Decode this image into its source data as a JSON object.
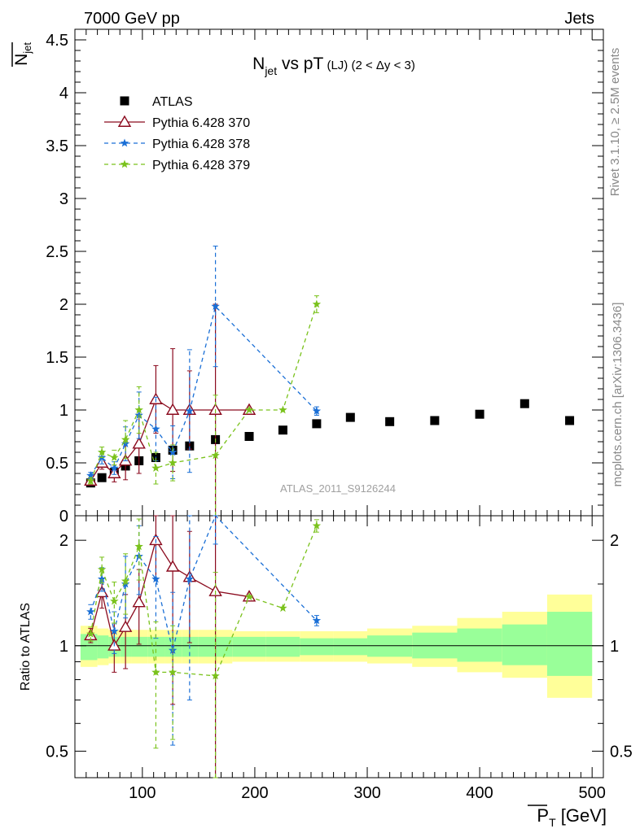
{
  "header": {
    "left": "7000 GeV pp",
    "right": "Jets"
  },
  "side_labels": {
    "rivet": "Rivet 3.1.10, ≥ 2.5M events",
    "mcplots": "mcplots.cern.ch [arXiv:1306.3436]"
  },
  "watermark": "ATLAS_2011_S9126244",
  "colors": {
    "atlas": "#000000",
    "p370": "#8b0a1e",
    "p378": "#1a6fd6",
    "p379": "#7ac21c",
    "band_inner": "#99ff99",
    "band_outer": "#ffff99"
  },
  "chart_data": [
    {
      "type": "scatter",
      "panel": "main",
      "title": {
        "main": "N",
        "main_sub": "jet",
        "rest": " vs pT",
        "small": " (LJ) (2 < Δy < 3)"
      },
      "ylabel": {
        "main": "N",
        "sub": "jet"
      },
      "xlim": [
        40,
        510
      ],
      "ylim": [
        0,
        4.6
      ],
      "xticks": [
        100,
        200,
        300,
        400,
        500
      ],
      "yticks": [
        "0",
        "0.5",
        "1",
        "1.5",
        "2",
        "2.5",
        "3",
        "3.5",
        "4",
        "4.5"
      ],
      "legend_position": "top-left",
      "series": [
        {
          "key": "atlas",
          "name": "ATLAS",
          "marker": "square",
          "x": [
            54,
            64,
            75,
            85,
            97,
            112,
            127,
            142,
            165,
            195,
            225,
            255,
            285,
            320,
            360,
            400,
            440,
            480
          ],
          "y": [
            0.31,
            0.36,
            0.41,
            0.47,
            0.52,
            0.55,
            0.62,
            0.66,
            0.72,
            0.75,
            0.81,
            0.87,
            0.93,
            0.89,
            0.9,
            0.96,
            1.06,
            0.9
          ]
        },
        {
          "key": "p370",
          "name": "Pythia 6.428 370",
          "marker": "triangle",
          "line": "solid",
          "x": [
            54,
            64,
            75,
            85,
            97,
            112,
            127,
            142,
            165,
            195
          ],
          "y": [
            0.33,
            0.5,
            0.4,
            0.52,
            0.68,
            1.1,
            1.0,
            1.0,
            1.0,
            1.0
          ],
          "err": [
            0.03,
            0.06,
            0.08,
            0.18,
            0.28,
            0.32,
            0.58,
            0.37,
            1.0,
            0.0
          ]
        },
        {
          "key": "p378",
          "name": "Pythia 6.428 378",
          "marker": "star",
          "line": "dashed",
          "x": [
            54,
            64,
            75,
            85,
            97,
            112,
            127,
            142,
            165,
            255
          ],
          "y": [
            0.38,
            0.55,
            0.45,
            0.68,
            0.95,
            0.82,
            0.6,
            0.99,
            1.98,
            0.99
          ],
          "err": [
            0.03,
            0.06,
            0.06,
            0.16,
            0.22,
            0.3,
            0.25,
            0.58,
            0.57,
            0.04
          ]
        },
        {
          "key": "p379",
          "name": "Pythia 6.428 379",
          "marker": "star",
          "line": "dashed",
          "x": [
            54,
            64,
            75,
            85,
            97,
            112,
            127,
            165,
            195,
            225,
            255
          ],
          "y": [
            0.33,
            0.6,
            0.55,
            0.72,
            1.0,
            0.45,
            0.5,
            0.57,
            1.0,
            1.0,
            2.0
          ],
          "err": [
            0.03,
            0.05,
            0.07,
            0.18,
            0.22,
            0.15,
            0.17,
            0.57,
            0.0,
            0.0,
            0.08
          ]
        }
      ]
    },
    {
      "type": "line",
      "panel": "ratio",
      "ylabel": "Ratio to ATLAS",
      "xlabel": {
        "main": "P",
        "sub": "T",
        "unit": " [GeV]"
      },
      "yscale": "log",
      "ylim": [
        0.42,
        2.35
      ],
      "yticks": [
        0.5,
        1,
        2
      ],
      "ytick_labels": [
        "0.5",
        "1",
        "2"
      ],
      "xticks": [
        100,
        200,
        300,
        400,
        500
      ],
      "xtick_labels": [
        "100",
        "200",
        "300",
        "400",
        "500"
      ],
      "band": {
        "edges": [
          45,
          60,
          70,
          80,
          90,
          105,
          120,
          135,
          150,
          180,
          210,
          240,
          270,
          300,
          340,
          380,
          420,
          460,
          500
        ],
        "inner": [
          [
            0.91,
            1.08
          ],
          [
            0.92,
            1.07
          ],
          [
            0.93,
            1.06
          ],
          [
            0.93,
            1.06
          ],
          [
            0.93,
            1.06
          ],
          [
            0.93,
            1.06
          ],
          [
            0.93,
            1.06
          ],
          [
            0.93,
            1.06
          ],
          [
            0.93,
            1.06
          ],
          [
            0.93,
            1.06
          ],
          [
            0.93,
            1.06
          ],
          [
            0.94,
            1.05
          ],
          [
            0.94,
            1.05
          ],
          [
            0.93,
            1.07
          ],
          [
            0.92,
            1.09
          ],
          [
            0.9,
            1.12
          ],
          [
            0.88,
            1.15
          ],
          [
            0.82,
            1.25
          ]
        ],
        "outer": [
          [
            0.87,
            1.14
          ],
          [
            0.88,
            1.12
          ],
          [
            0.89,
            1.11
          ],
          [
            0.89,
            1.11
          ],
          [
            0.89,
            1.11
          ],
          [
            0.89,
            1.11
          ],
          [
            0.89,
            1.11
          ],
          [
            0.89,
            1.11
          ],
          [
            0.89,
            1.11
          ],
          [
            0.9,
            1.1
          ],
          [
            0.9,
            1.1
          ],
          [
            0.9,
            1.1
          ],
          [
            0.9,
            1.1
          ],
          [
            0.89,
            1.12
          ],
          [
            0.87,
            1.14
          ],
          [
            0.84,
            1.2
          ],
          [
            0.81,
            1.25
          ],
          [
            0.71,
            1.4
          ]
        ]
      },
      "series": [
        {
          "key": "p370",
          "x": [
            54,
            64,
            75,
            85,
            97,
            112,
            127,
            142,
            165,
            195
          ],
          "y": [
            1.07,
            1.42,
            1.0,
            1.13,
            1.33,
            2.0,
            1.68,
            1.57,
            1.43,
            1.38
          ],
          "err": [
            0.05,
            0.14,
            0.16,
            0.27,
            0.32,
            0.45,
            1.0,
            0.55,
            1.5,
            0.0
          ]
        },
        {
          "key": "p378",
          "x": [
            54,
            64,
            75,
            85,
            97,
            112,
            127,
            142,
            165,
            255
          ],
          "y": [
            1.25,
            1.55,
            1.1,
            1.5,
            1.8,
            1.55,
            0.97,
            1.55,
            2.75,
            1.18
          ],
          "err": [
            0.06,
            0.12,
            0.15,
            0.3,
            0.4,
            0.5,
            0.45,
            0.85,
            0.8,
            0.04
          ]
        },
        {
          "key": "p379",
          "x": [
            54,
            64,
            75,
            85,
            97,
            112,
            127,
            165,
            195,
            225,
            255
          ],
          "y": [
            1.08,
            1.65,
            1.34,
            1.53,
            1.92,
            0.84,
            0.84,
            0.82,
            1.38,
            1.28,
            2.2
          ],
          "err": [
            0.05,
            0.14,
            0.18,
            0.3,
            0.38,
            0.33,
            0.3,
            0.8,
            0.0,
            0.0,
            0.09
          ]
        }
      ]
    }
  ]
}
